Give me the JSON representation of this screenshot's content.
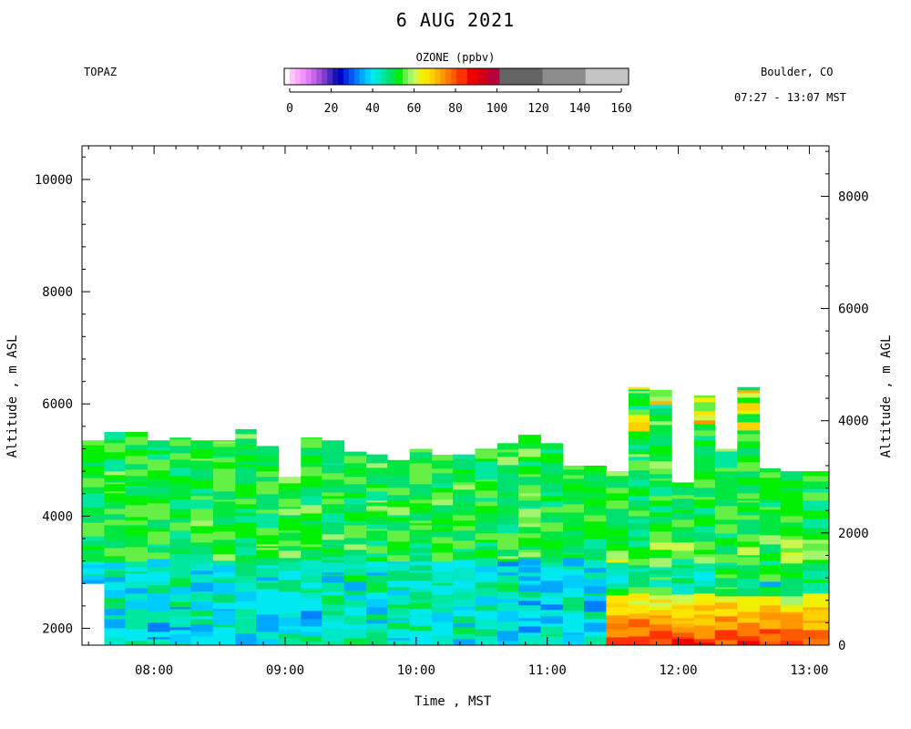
{
  "chart_data": {
    "type": "heatmap",
    "title": "6 AUG 2021",
    "site": "TOPAZ",
    "location": "Boulder, CO",
    "time_range": "07:27 - 13:07 MST",
    "xlabel": "Time , MST",
    "ylabel_left": "Altitude , m ASL",
    "ylabel_right": "Altitude , m AGL",
    "colorbar": {
      "title": "OZONE (ppbv)",
      "range": [
        0,
        160
      ],
      "ticks": [
        0,
        20,
        40,
        60,
        80,
        100,
        120,
        140,
        160
      ],
      "tick_labels": [
        "0",
        "20",
        "40",
        "60",
        "80",
        "100",
        "120",
        "140",
        "160"
      ],
      "bins": [
        {
          "from": 0,
          "to": 2.5,
          "color": "#ffffff"
        },
        {
          "from": 2.5,
          "to": 5,
          "color": "#ffc6ff"
        },
        {
          "from": 5,
          "to": 7.5,
          "color": "#ffaaff"
        },
        {
          "from": 7.5,
          "to": 10,
          "color": "#f095ff"
        },
        {
          "from": 10,
          "to": 12.5,
          "color": "#e07cf5"
        },
        {
          "from": 12.5,
          "to": 15,
          "color": "#c964ea"
        },
        {
          "from": 15,
          "to": 17.5,
          "color": "#a550dd"
        },
        {
          "from": 17.5,
          "to": 20,
          "color": "#7c3ccd"
        },
        {
          "from": 20,
          "to": 22.5,
          "color": "#4a28c2"
        },
        {
          "from": 22.5,
          "to": 25,
          "color": "#1414b4"
        },
        {
          "from": 25,
          "to": 27.5,
          "color": "#0000c8"
        },
        {
          "from": 27.5,
          "to": 30,
          "color": "#0030e0"
        },
        {
          "from": 30,
          "to": 32.5,
          "color": "#0058f0"
        },
        {
          "from": 32.5,
          "to": 35,
          "color": "#0080ff"
        },
        {
          "from": 35,
          "to": 37.5,
          "color": "#00a8ff"
        },
        {
          "from": 37.5,
          "to": 40,
          "color": "#00ccff"
        },
        {
          "from": 40,
          "to": 42.5,
          "color": "#00e8f0"
        },
        {
          "from": 42.5,
          "to": 45,
          "color": "#00e8c8"
        },
        {
          "from": 45,
          "to": 47.5,
          "color": "#00e8a0"
        },
        {
          "from": 47.5,
          "to": 50,
          "color": "#00e070"
        },
        {
          "from": 50,
          "to": 52.5,
          "color": "#00e840"
        },
        {
          "from": 52.5,
          "to": 55,
          "color": "#00f000"
        },
        {
          "from": 55,
          "to": 57.5,
          "color": "#66f046"
        },
        {
          "from": 57.5,
          "to": 60,
          "color": "#a6f46e"
        },
        {
          "from": 60,
          "to": 62.5,
          "color": "#ccf850"
        },
        {
          "from": 62.5,
          "to": 65,
          "color": "#f0f000"
        },
        {
          "from": 65,
          "to": 67.5,
          "color": "#ffe600"
        },
        {
          "from": 67.5,
          "to": 70,
          "color": "#ffd000"
        },
        {
          "from": 70,
          "to": 72.5,
          "color": "#ffb400"
        },
        {
          "from": 72.5,
          "to": 75,
          "color": "#ff9600"
        },
        {
          "from": 75,
          "to": 77.5,
          "color": "#ff7800"
        },
        {
          "from": 77.5,
          "to": 80,
          "color": "#ff5a00"
        },
        {
          "from": 80,
          "to": 85,
          "color": "#ff3200"
        },
        {
          "from": 85,
          "to": 90,
          "color": "#ee0000"
        },
        {
          "from": 90,
          "to": 95,
          "color": "#d20014"
        },
        {
          "from": 95,
          "to": 100,
          "color": "#b4003c"
        },
        {
          "from": 100,
          "to": 110,
          "color": "#646464"
        },
        {
          "from": 110,
          "to": 120,
          "color": "#646464"
        },
        {
          "from": 120,
          "to": 130,
          "color": "#8c8c8c"
        },
        {
          "from": 130,
          "to": 140,
          "color": "#8c8c8c"
        },
        {
          "from": 140,
          "to": 160,
          "color": "#c4c4c4"
        }
      ]
    },
    "x_axis": {
      "unit": "hour MST",
      "range": [
        7.45,
        13.15
      ],
      "ticks": [
        8,
        9,
        10,
        11,
        12,
        13
      ],
      "tick_labels": [
        "08:00",
        "09:00",
        "10:00",
        "11:00",
        "12:00",
        "13:00"
      ]
    },
    "y_axis_left": {
      "unit": "m ASL",
      "range": [
        1700,
        10600
      ],
      "ticks": [
        2000,
        4000,
        6000,
        8000,
        10000
      ],
      "tick_labels": [
        "2000",
        "4000",
        "6000",
        "8000",
        "10000"
      ]
    },
    "y_axis_right": {
      "unit": "m AGL",
      "range": [
        0,
        8900
      ],
      "ticks": [
        0,
        2000,
        4000,
        6000,
        8000
      ],
      "tick_labels": [
        "0",
        "2000",
        "4000",
        "6000",
        "8000"
      ]
    },
    "profiles": [
      {
        "t0": 7.45,
        "t1": 7.62,
        "top": 5350,
        "bottom": 2800
      },
      {
        "t0": 7.62,
        "t1": 7.78,
        "top": 5500,
        "bottom": 1700
      },
      {
        "t0": 7.78,
        "t1": 7.95,
        "top": 5500,
        "bottom": 1700
      },
      {
        "t0": 7.95,
        "t1": 8.12,
        "top": 5350,
        "bottom": 1700
      },
      {
        "t0": 8.12,
        "t1": 8.28,
        "top": 5400,
        "bottom": 1700
      },
      {
        "t0": 8.28,
        "t1": 8.45,
        "top": 5350,
        "bottom": 1700
      },
      {
        "t0": 8.45,
        "t1": 8.62,
        "top": 5350,
        "bottom": 1700
      },
      {
        "t0": 8.62,
        "t1": 8.78,
        "top": 5550,
        "bottom": 1700
      },
      {
        "t0": 8.78,
        "t1": 8.95,
        "top": 5250,
        "bottom": 1700
      },
      {
        "t0": 8.95,
        "t1": 9.12,
        "top": 4700,
        "bottom": 1700
      },
      {
        "t0": 9.12,
        "t1": 9.28,
        "top": 5400,
        "bottom": 1700
      },
      {
        "t0": 9.28,
        "t1": 9.45,
        "top": 5350,
        "bottom": 1700
      },
      {
        "t0": 9.45,
        "t1": 9.62,
        "top": 5150,
        "bottom": 1700
      },
      {
        "t0": 9.62,
        "t1": 9.78,
        "top": 5100,
        "bottom": 1700
      },
      {
        "t0": 9.78,
        "t1": 9.95,
        "top": 5000,
        "bottom": 1700
      },
      {
        "t0": 9.95,
        "t1": 10.12,
        "top": 5200,
        "bottom": 1700
      },
      {
        "t0": 10.12,
        "t1": 10.28,
        "top": 5100,
        "bottom": 1700
      },
      {
        "t0": 10.28,
        "t1": 10.45,
        "top": 5100,
        "bottom": 1700
      },
      {
        "t0": 10.45,
        "t1": 10.62,
        "top": 5200,
        "bottom": 1700
      },
      {
        "t0": 10.62,
        "t1": 10.78,
        "top": 5300,
        "bottom": 1700
      },
      {
        "t0": 10.78,
        "t1": 10.95,
        "top": 5450,
        "bottom": 1700
      },
      {
        "t0": 10.95,
        "t1": 11.12,
        "top": 5300,
        "bottom": 1700
      },
      {
        "t0": 11.12,
        "t1": 11.28,
        "top": 4900,
        "bottom": 1700
      },
      {
        "t0": 11.28,
        "t1": 11.45,
        "top": 4900,
        "bottom": 1700
      },
      {
        "t0": 11.45,
        "t1": 11.62,
        "top": 4800,
        "bottom": 1700
      },
      {
        "t0": 11.62,
        "t1": 11.78,
        "top": 6300,
        "bottom": 1700
      },
      {
        "t0": 11.78,
        "t1": 11.95,
        "top": 6250,
        "bottom": 1700
      },
      {
        "t0": 11.95,
        "t1": 12.12,
        "top": 4600,
        "bottom": 1700
      },
      {
        "t0": 12.12,
        "t1": 12.28,
        "top": 6150,
        "bottom": 1700
      },
      {
        "t0": 12.28,
        "t1": 12.45,
        "top": 5200,
        "bottom": 1700
      },
      {
        "t0": 12.45,
        "t1": 12.62,
        "top": 6300,
        "bottom": 1700
      },
      {
        "t0": 12.62,
        "t1": 12.78,
        "top": 4850,
        "bottom": 1700
      },
      {
        "t0": 12.78,
        "t1": 12.95,
        "top": 4800,
        "bottom": 1700
      },
      {
        "t0": 12.95,
        "t1": 13.15,
        "top": 4800,
        "bottom": 1700
      }
    ]
  }
}
